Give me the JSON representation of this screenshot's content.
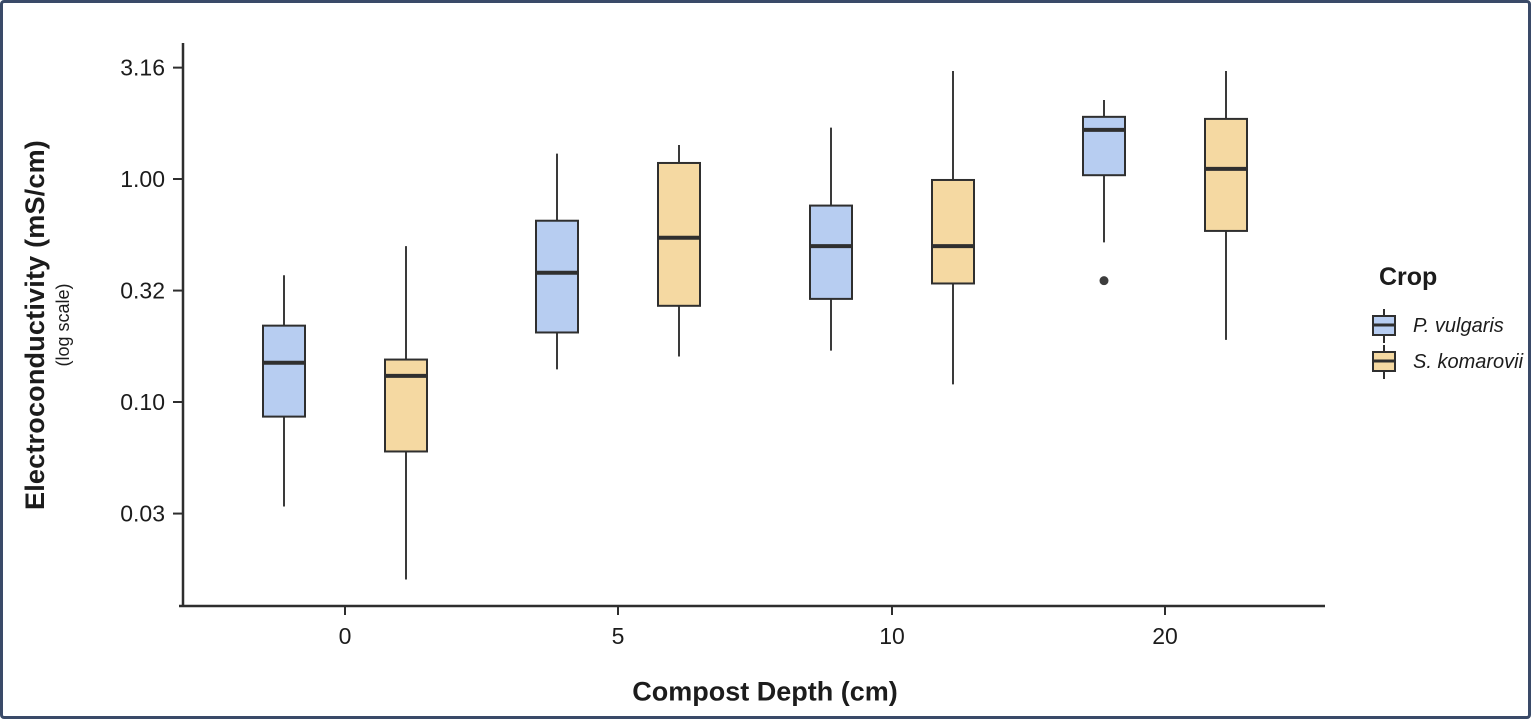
{
  "frame": {
    "border_color": "#3a4a68",
    "background_color": "#ffffff"
  },
  "chart": {
    "y_axis": {
      "title": "Electroconductivity (mS/cm)",
      "subtitle": "(log scale)",
      "ticks": [
        "3.16",
        "1.00",
        "0.32",
        "0.10",
        "0.03"
      ],
      "tick_values": [
        3.16,
        1.0,
        0.316,
        0.1,
        0.0316
      ]
    },
    "x_axis": {
      "title": "Compost Depth (cm)",
      "ticks": [
        "0",
        "5",
        "10",
        "20"
      ]
    },
    "legend": {
      "title": "Crop",
      "items": [
        {
          "label": "P. vulgaris",
          "color": "#b7cdf1"
        },
        {
          "label": "S. komarovii",
          "color": "#f5d9a2"
        }
      ]
    }
  },
  "chart_data": {
    "type": "boxplot",
    "title": "",
    "xlabel": "Compost Depth (cm)",
    "ylabel": "Electroconductivity (mS/cm) (log scale)",
    "y_scale": "log10",
    "ylim": [
      0.015,
      4.0
    ],
    "y_ticks": [
      3.16,
      1.0,
      0.32,
      0.1,
      0.03
    ],
    "grid": false,
    "legend_title": "Crop",
    "legend_position": "right",
    "categories": [
      "0",
      "5",
      "10",
      "20"
    ],
    "series": [
      {
        "name": "P. vulgaris",
        "color": "#b7cdf1",
        "boxes": [
          {
            "category": "0",
            "whisker_low": 0.034,
            "q1": 0.086,
            "median": 0.15,
            "q3": 0.22,
            "whisker_high": 0.37,
            "outliers": []
          },
          {
            "category": "5",
            "whisker_low": 0.14,
            "q1": 0.205,
            "median": 0.38,
            "q3": 0.65,
            "whisker_high": 1.3,
            "outliers": []
          },
          {
            "category": "10",
            "whisker_low": 0.17,
            "q1": 0.29,
            "median": 0.5,
            "q3": 0.76,
            "whisker_high": 1.7,
            "outliers": []
          },
          {
            "category": "20",
            "whisker_low": 0.52,
            "q1": 1.04,
            "median": 1.66,
            "q3": 1.9,
            "whisker_high": 2.26,
            "outliers": [
              0.35
            ]
          }
        ]
      },
      {
        "name": "S. komarovii",
        "color": "#f5d9a2",
        "boxes": [
          {
            "category": "0",
            "whisker_low": 0.016,
            "q1": 0.06,
            "median": 0.131,
            "q3": 0.155,
            "whisker_high": 0.5,
            "outliers": []
          },
          {
            "category": "5",
            "whisker_low": 0.16,
            "q1": 0.27,
            "median": 0.545,
            "q3": 1.18,
            "whisker_high": 1.42,
            "outliers": []
          },
          {
            "category": "10",
            "whisker_low": 0.12,
            "q1": 0.34,
            "median": 0.5,
            "q3": 0.99,
            "whisker_high": 3.05,
            "outliers": []
          },
          {
            "category": "20",
            "whisker_low": 0.19,
            "q1": 0.585,
            "median": 1.11,
            "q3": 1.86,
            "whisker_high": 3.05,
            "outliers": []
          }
        ]
      }
    ]
  }
}
